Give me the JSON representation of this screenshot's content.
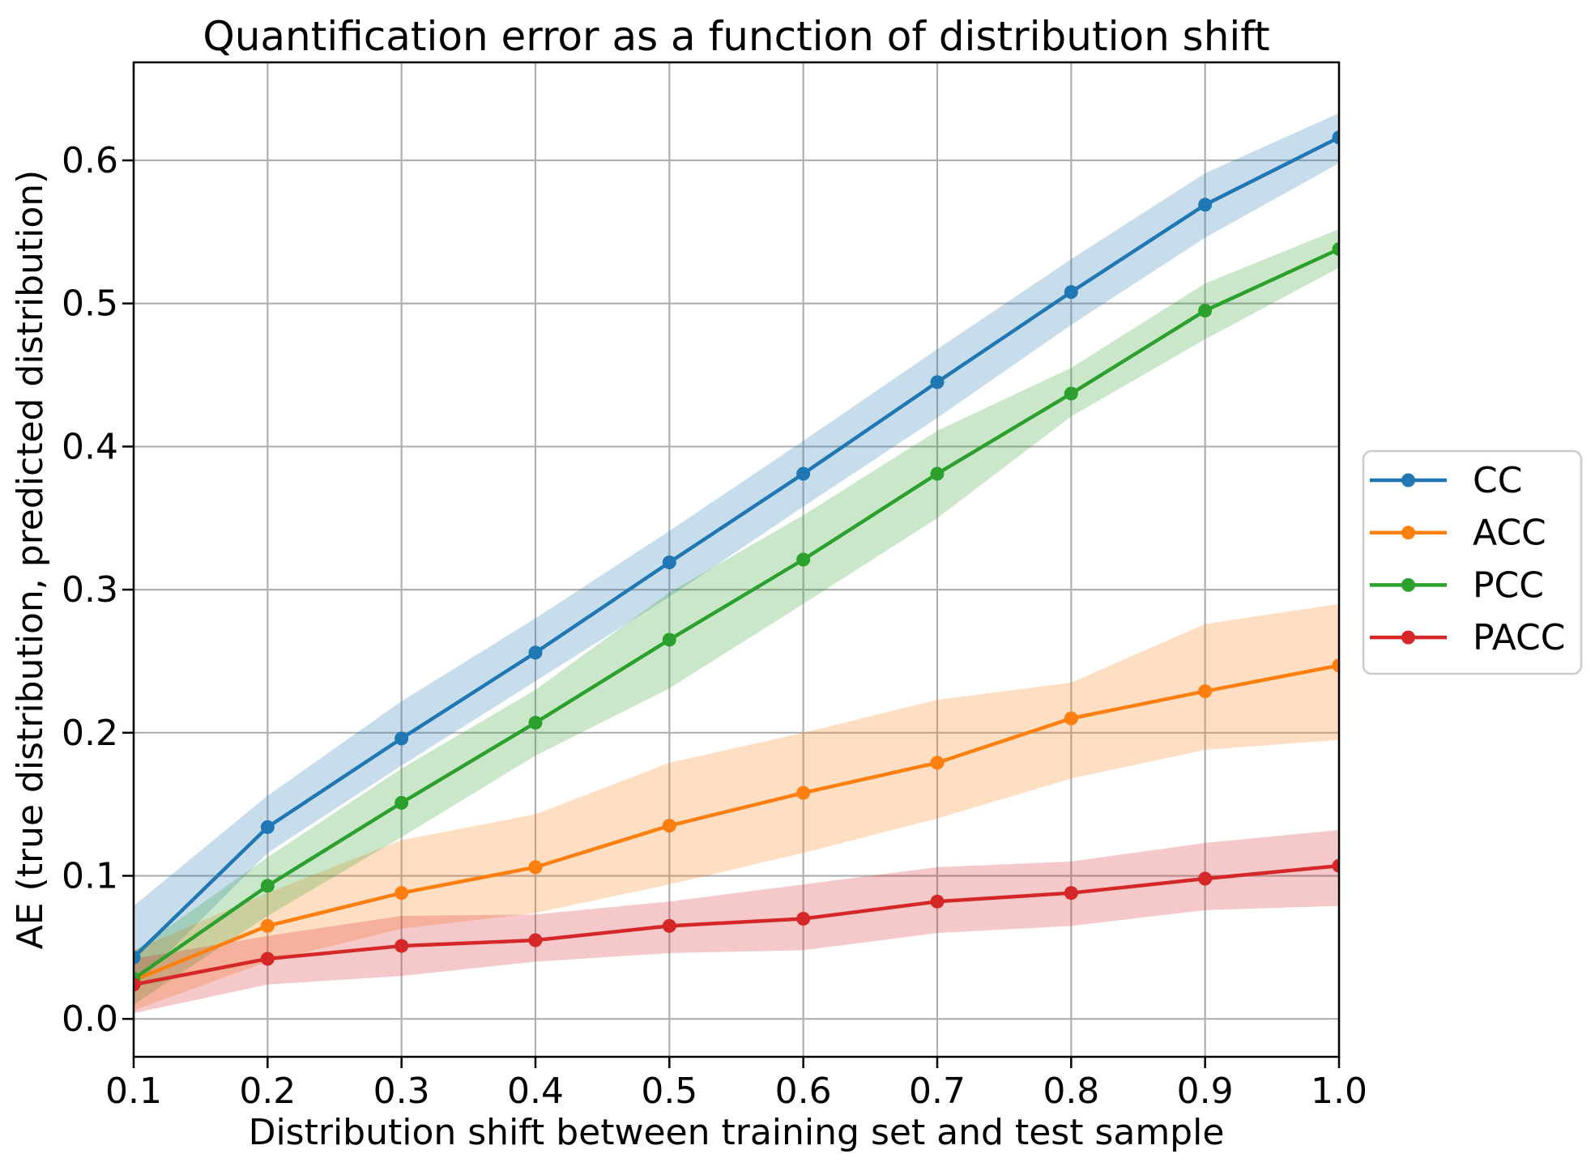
{
  "chart_data": {
    "type": "line",
    "title": "Quantification error as a function of distribution shift",
    "xlabel": "Distribution shift between training set and test sample",
    "ylabel": "AE (true distribution, predicted distribution)",
    "grid": true,
    "legend_position": "outside-right",
    "xlim": [
      0.1,
      1.0
    ],
    "ylim": [
      -0.0265,
      0.6685
    ],
    "x": [
      0.1,
      0.2,
      0.3,
      0.4,
      0.5,
      0.6,
      0.7,
      0.8,
      0.9,
      1.0
    ],
    "x_tick_labels": [
      "0.1",
      "0.2",
      "0.3",
      "0.4",
      "0.5",
      "0.6",
      "0.7",
      "0.8",
      "0.9",
      "1.0"
    ],
    "y_ticks": [
      0.0,
      0.1,
      0.2,
      0.3,
      0.4,
      0.5,
      0.6
    ],
    "y_tick_labels": [
      "0.0",
      "0.1",
      "0.2",
      "0.3",
      "0.4",
      "0.5",
      "0.6"
    ],
    "band_alpha": 0.25,
    "series": [
      {
        "name": "CC",
        "color": "#1f77b4",
        "values": [
          0.043,
          0.134,
          0.196,
          0.256,
          0.319,
          0.381,
          0.445,
          0.508,
          0.569,
          0.616
        ],
        "band_lower": [
          0.022,
          0.116,
          0.177,
          0.236,
          0.295,
          0.358,
          0.42,
          0.485,
          0.546,
          0.598
        ],
        "band_upper": [
          0.079,
          0.156,
          0.222,
          0.28,
          0.341,
          0.404,
          0.468,
          0.531,
          0.591,
          0.633
        ]
      },
      {
        "name": "ACC",
        "color": "#ff7f0e",
        "values": [
          0.027,
          0.065,
          0.088,
          0.106,
          0.135,
          0.158,
          0.179,
          0.21,
          0.229,
          0.247
        ],
        "band_lower": [
          0.006,
          0.04,
          0.063,
          0.074,
          0.094,
          0.116,
          0.14,
          0.168,
          0.188,
          0.195
        ],
        "band_upper": [
          0.048,
          0.088,
          0.125,
          0.143,
          0.179,
          0.2,
          0.223,
          0.235,
          0.276,
          0.29
        ]
      },
      {
        "name": "PCC",
        "color": "#2ca02c",
        "values": [
          0.028,
          0.093,
          0.151,
          0.207,
          0.265,
          0.321,
          0.381,
          0.437,
          0.495,
          0.538
        ],
        "band_lower": [
          0.01,
          0.072,
          0.127,
          0.184,
          0.231,
          0.29,
          0.35,
          0.421,
          0.475,
          0.525
        ],
        "band_upper": [
          0.047,
          0.113,
          0.175,
          0.23,
          0.298,
          0.352,
          0.411,
          0.455,
          0.514,
          0.552
        ]
      },
      {
        "name": "PACC",
        "color": "#d62728",
        "values": [
          0.024,
          0.042,
          0.051,
          0.055,
          0.065,
          0.07,
          0.082,
          0.088,
          0.098,
          0.107
        ],
        "band_lower": [
          0.004,
          0.024,
          0.03,
          0.04,
          0.046,
          0.048,
          0.06,
          0.065,
          0.076,
          0.079
        ],
        "band_upper": [
          0.042,
          0.058,
          0.072,
          0.073,
          0.082,
          0.094,
          0.106,
          0.11,
          0.123,
          0.132
        ]
      }
    ]
  },
  "colors": {
    "background": "#ffffff",
    "grid": "#b0b0b0",
    "spine": "#000000",
    "text": "#000000",
    "legend_border": "#cccccc",
    "legend_background": "#ffffff"
  }
}
